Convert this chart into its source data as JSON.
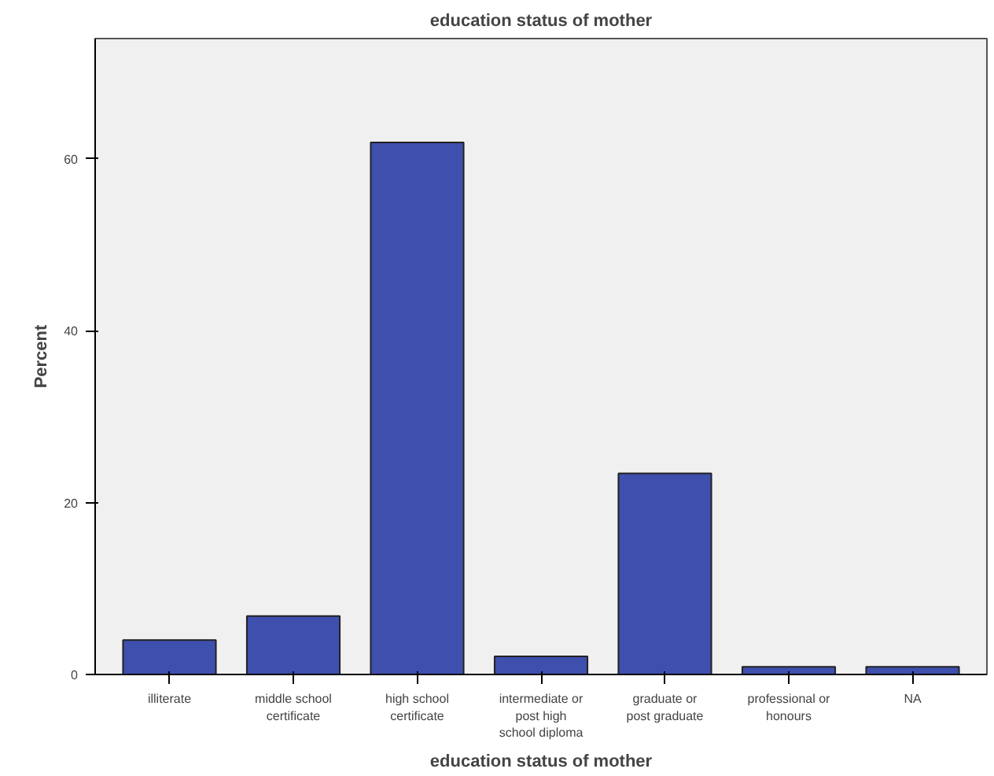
{
  "chart_data": {
    "type": "bar",
    "title": "education status of mother",
    "xlabel": "education status of mother",
    "ylabel": "Percent",
    "categories": [
      "illiterate",
      "middle school\ncertificate",
      "high school\ncertificate",
      "intermediate or\npost high\nschool diploma",
      "graduate or\npost graduate",
      "professional or\nhonours",
      "NA"
    ],
    "values": [
      4.0,
      6.8,
      61.9,
      2.1,
      23.4,
      0.9,
      0.9
    ],
    "color": "#3f4fae",
    "ylim": [
      0,
      74
    ],
    "yticks": [
      0,
      20,
      40,
      60
    ],
    "grid": false
  }
}
